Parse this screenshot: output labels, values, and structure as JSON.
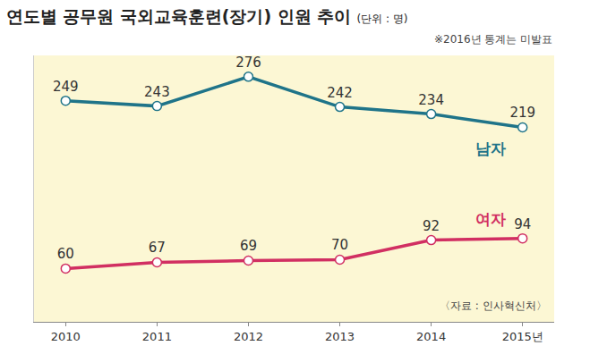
{
  "chart_data": {
    "type": "line",
    "title": "연도별 공무원 국외교육훈련(장기) 인원 추이",
    "subtitle": "(단위 : 명)",
    "annotations": [
      "※2016년 통계는 미발표",
      "〈자료 : 인사혁신처〉"
    ],
    "categories": [
      "2010",
      "2011",
      "2012",
      "2013",
      "2014",
      "2015년"
    ],
    "series": [
      {
        "name": "남자",
        "color": "#1f7489",
        "values": [
          249,
          243,
          276,
          242,
          234,
          219
        ]
      },
      {
        "name": "여자",
        "color": "#d12f62",
        "values": [
          60,
          67,
          69,
          70,
          92,
          94
        ]
      }
    ],
    "ylim": [
      0,
      300
    ],
    "yticks": [],
    "tick_labels": "x",
    "grid": false,
    "data_labels": true,
    "marker": "circle"
  }
}
